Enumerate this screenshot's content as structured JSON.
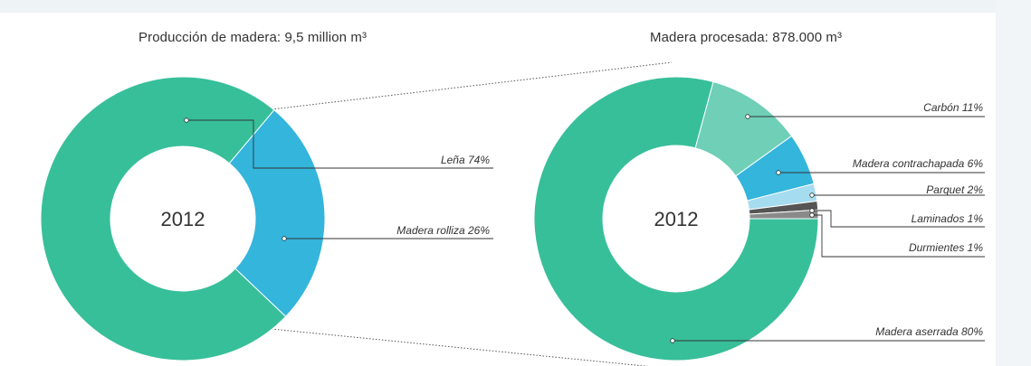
{
  "chart_data": [
    {
      "type": "pie",
      "title": "Producción de madera: 9,5 million m³",
      "center_label": "2012",
      "colors": [
        "#37bf9a",
        "#33b5dc"
      ],
      "slices": [
        {
          "label": "Leña 74%",
          "value": 74,
          "color": "#37bf9a"
        },
        {
          "label": "Madera rolliza 26%",
          "value": 26,
          "color": "#33b5dc"
        }
      ]
    },
    {
      "type": "pie",
      "title": "Madera procesada: 878.000 m³",
      "center_label": "2012",
      "slices": [
        {
          "label": "Madera aserrada 80%",
          "value": 80,
          "color": "#37bf9a"
        },
        {
          "label": "Carbón 11%",
          "value": 11,
          "color": "#6fcfb7"
        },
        {
          "label": "Madera contrachapada 6%",
          "value": 6,
          "color": "#33b5dc"
        },
        {
          "label": "Parquet 2%",
          "value": 2,
          "color": "#a6dcef"
        },
        {
          "label": "Laminados 1%",
          "value": 1,
          "color": "#555555"
        },
        {
          "label": "Durmientes 1%",
          "value": 1,
          "color": "#8a8a8a"
        }
      ]
    }
  ]
}
